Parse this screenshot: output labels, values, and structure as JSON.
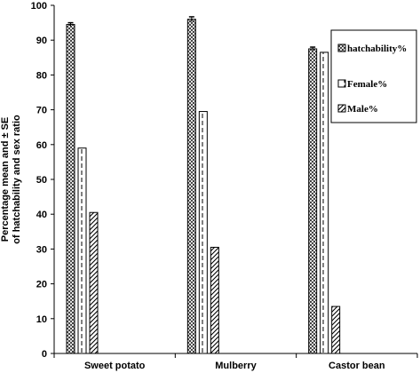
{
  "chart_data": {
    "type": "bar",
    "categories": [
      "Sweet potato",
      "Mulberry",
      "Castor bean"
    ],
    "series": [
      {
        "name": "hatchability%",
        "values": [
          94.5,
          96.0,
          87.5
        ],
        "errors": [
          0.5,
          0.7,
          0.5
        ],
        "pattern": "diamond"
      },
      {
        "name": "Female%",
        "values": [
          59.0,
          69.5,
          86.5
        ],
        "errors": [
          0,
          0,
          0
        ],
        "pattern": "dashed-vertical"
      },
      {
        "name": "Male%",
        "values": [
          40.5,
          30.5,
          13.5
        ],
        "errors": [
          0,
          0,
          0
        ],
        "pattern": "diagonal"
      }
    ],
    "ylabel_lines": [
      "Percentage  mean  and  ± SE",
      "of hatchability and sex ratio"
    ],
    "xlabel": "",
    "title": "",
    "ylim": [
      0,
      100
    ],
    "yticks": [
      0,
      10,
      20,
      30,
      40,
      50,
      60,
      70,
      80,
      90,
      100
    ],
    "grid": false,
    "legend_position": "top-right"
  }
}
